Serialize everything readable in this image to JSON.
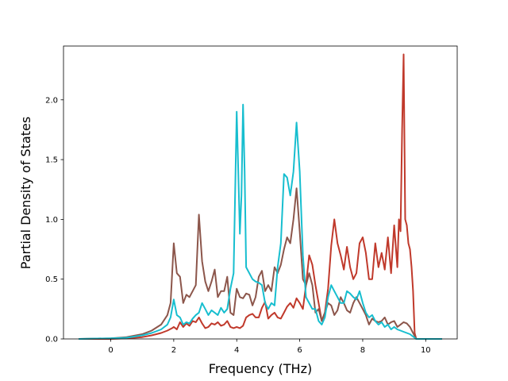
{
  "chart_data": {
    "type": "line",
    "title": "",
    "xlabel": "Frequency (THz)",
    "ylabel": "Partial Density of States",
    "xlim": [
      -1.5,
      11.0
    ],
    "ylim": [
      0.0,
      2.45
    ],
    "xticks": [
      0,
      2,
      4,
      6,
      8,
      10
    ],
    "xtick_labels": [
      "0",
      "2",
      "4",
      "6",
      "8",
      "10"
    ],
    "yticks": [
      0.0,
      0.5,
      1.0,
      1.5,
      2.0
    ],
    "ytick_labels": [
      "0.0",
      "0.5",
      "1.0",
      "1.5",
      "2.0"
    ],
    "grid": false,
    "legend": "none",
    "series": [
      {
        "color": "#c0392b",
        "points": [
          [
            -1.0,
            0.0
          ],
          [
            0.0,
            0.0
          ],
          [
            0.5,
            0.005
          ],
          [
            1.0,
            0.015
          ],
          [
            1.3,
            0.03
          ],
          [
            1.6,
            0.05
          ],
          [
            1.8,
            0.07
          ],
          [
            1.95,
            0.09
          ],
          [
            2.0,
            0.1
          ],
          [
            2.05,
            0.09
          ],
          [
            2.1,
            0.08
          ],
          [
            2.2,
            0.14
          ],
          [
            2.3,
            0.1
          ],
          [
            2.4,
            0.13
          ],
          [
            2.5,
            0.11
          ],
          [
            2.6,
            0.15
          ],
          [
            2.7,
            0.14
          ],
          [
            2.8,
            0.18
          ],
          [
            2.9,
            0.13
          ],
          [
            3.0,
            0.09
          ],
          [
            3.1,
            0.1
          ],
          [
            3.2,
            0.13
          ],
          [
            3.3,
            0.12
          ],
          [
            3.4,
            0.14
          ],
          [
            3.5,
            0.11
          ],
          [
            3.6,
            0.12
          ],
          [
            3.7,
            0.15
          ],
          [
            3.8,
            0.1
          ],
          [
            3.9,
            0.09
          ],
          [
            4.0,
            0.1
          ],
          [
            4.1,
            0.09
          ],
          [
            4.2,
            0.11
          ],
          [
            4.3,
            0.18
          ],
          [
            4.4,
            0.2
          ],
          [
            4.5,
            0.21
          ],
          [
            4.6,
            0.18
          ],
          [
            4.7,
            0.18
          ],
          [
            4.8,
            0.26
          ],
          [
            4.9,
            0.31
          ],
          [
            5.0,
            0.17
          ],
          [
            5.1,
            0.2
          ],
          [
            5.2,
            0.22
          ],
          [
            5.3,
            0.18
          ],
          [
            5.4,
            0.17
          ],
          [
            5.5,
            0.22
          ],
          [
            5.6,
            0.27
          ],
          [
            5.7,
            0.3
          ],
          [
            5.8,
            0.26
          ],
          [
            5.9,
            0.34
          ],
          [
            6.0,
            0.3
          ],
          [
            6.1,
            0.25
          ],
          [
            6.2,
            0.45
          ],
          [
            6.3,
            0.7
          ],
          [
            6.4,
            0.62
          ],
          [
            6.5,
            0.45
          ],
          [
            6.6,
            0.3
          ],
          [
            6.7,
            0.15
          ],
          [
            6.8,
            0.22
          ],
          [
            6.9,
            0.42
          ],
          [
            7.0,
            0.78
          ],
          [
            7.1,
            1.0
          ],
          [
            7.2,
            0.8
          ],
          [
            7.3,
            0.7
          ],
          [
            7.4,
            0.58
          ],
          [
            7.5,
            0.77
          ],
          [
            7.6,
            0.6
          ],
          [
            7.7,
            0.5
          ],
          [
            7.8,
            0.55
          ],
          [
            7.9,
            0.8
          ],
          [
            8.0,
            0.85
          ],
          [
            8.1,
            0.72
          ],
          [
            8.2,
            0.5
          ],
          [
            8.3,
            0.5
          ],
          [
            8.4,
            0.8
          ],
          [
            8.5,
            0.6
          ],
          [
            8.6,
            0.72
          ],
          [
            8.7,
            0.58
          ],
          [
            8.8,
            0.85
          ],
          [
            8.9,
            0.55
          ],
          [
            9.0,
            0.95
          ],
          [
            9.1,
            0.6
          ],
          [
            9.15,
            1.0
          ],
          [
            9.2,
            0.9
          ],
          [
            9.25,
            1.75
          ],
          [
            9.3,
            2.38
          ],
          [
            9.35,
            1.0
          ],
          [
            9.4,
            0.95
          ],
          [
            9.45,
            0.8
          ],
          [
            9.5,
            0.75
          ],
          [
            9.55,
            0.6
          ],
          [
            9.6,
            0.4
          ],
          [
            9.65,
            0.05
          ],
          [
            9.7,
            0.0
          ],
          [
            10.5,
            0.0
          ]
        ]
      },
      {
        "color": "#8c564b",
        "points": [
          [
            -1.0,
            0.0
          ],
          [
            0.0,
            0.005
          ],
          [
            0.5,
            0.015
          ],
          [
            1.0,
            0.04
          ],
          [
            1.3,
            0.07
          ],
          [
            1.6,
            0.12
          ],
          [
            1.8,
            0.2
          ],
          [
            1.9,
            0.3
          ],
          [
            2.0,
            0.8
          ],
          [
            2.1,
            0.55
          ],
          [
            2.2,
            0.52
          ],
          [
            2.3,
            0.3
          ],
          [
            2.4,
            0.37
          ],
          [
            2.5,
            0.35
          ],
          [
            2.6,
            0.4
          ],
          [
            2.7,
            0.45
          ],
          [
            2.8,
            1.04
          ],
          [
            2.9,
            0.65
          ],
          [
            3.0,
            0.48
          ],
          [
            3.1,
            0.4
          ],
          [
            3.2,
            0.48
          ],
          [
            3.3,
            0.58
          ],
          [
            3.4,
            0.35
          ],
          [
            3.5,
            0.4
          ],
          [
            3.6,
            0.4
          ],
          [
            3.7,
            0.52
          ],
          [
            3.8,
            0.22
          ],
          [
            3.9,
            0.2
          ],
          [
            4.0,
            0.42
          ],
          [
            4.1,
            0.35
          ],
          [
            4.2,
            0.34
          ],
          [
            4.3,
            0.38
          ],
          [
            4.4,
            0.37
          ],
          [
            4.5,
            0.28
          ],
          [
            4.6,
            0.35
          ],
          [
            4.7,
            0.52
          ],
          [
            4.8,
            0.57
          ],
          [
            4.9,
            0.4
          ],
          [
            5.0,
            0.45
          ],
          [
            5.1,
            0.4
          ],
          [
            5.2,
            0.6
          ],
          [
            5.3,
            0.55
          ],
          [
            5.4,
            0.62
          ],
          [
            5.5,
            0.75
          ],
          [
            5.6,
            0.85
          ],
          [
            5.7,
            0.8
          ],
          [
            5.8,
            1.0
          ],
          [
            5.9,
            1.26
          ],
          [
            6.0,
            0.9
          ],
          [
            6.1,
            0.5
          ],
          [
            6.2,
            0.45
          ],
          [
            6.3,
            0.55
          ],
          [
            6.4,
            0.45
          ],
          [
            6.5,
            0.22
          ],
          [
            6.6,
            0.25
          ],
          [
            6.7,
            0.15
          ],
          [
            6.8,
            0.22
          ],
          [
            6.9,
            0.3
          ],
          [
            7.0,
            0.28
          ],
          [
            7.1,
            0.2
          ],
          [
            7.2,
            0.24
          ],
          [
            7.3,
            0.35
          ],
          [
            7.4,
            0.3
          ],
          [
            7.5,
            0.24
          ],
          [
            7.6,
            0.22
          ],
          [
            7.7,
            0.3
          ],
          [
            7.8,
            0.35
          ],
          [
            7.9,
            0.3
          ],
          [
            8.0,
            0.25
          ],
          [
            8.1,
            0.2
          ],
          [
            8.2,
            0.12
          ],
          [
            8.3,
            0.17
          ],
          [
            8.4,
            0.15
          ],
          [
            8.5,
            0.14
          ],
          [
            8.6,
            0.15
          ],
          [
            8.7,
            0.18
          ],
          [
            8.8,
            0.12
          ],
          [
            8.9,
            0.14
          ],
          [
            9.0,
            0.15
          ],
          [
            9.1,
            0.1
          ],
          [
            9.2,
            0.12
          ],
          [
            9.3,
            0.14
          ],
          [
            9.4,
            0.13
          ],
          [
            9.5,
            0.1
          ],
          [
            9.6,
            0.05
          ],
          [
            9.7,
            0.0
          ],
          [
            10.5,
            0.0
          ]
        ]
      },
      {
        "color": "#17becf",
        "points": [
          [
            -1.0,
            0.0
          ],
          [
            0.0,
            0.005
          ],
          [
            0.5,
            0.01
          ],
          [
            1.0,
            0.03
          ],
          [
            1.3,
            0.05
          ],
          [
            1.6,
            0.08
          ],
          [
            1.8,
            0.12
          ],
          [
            1.9,
            0.18
          ],
          [
            2.0,
            0.33
          ],
          [
            2.1,
            0.2
          ],
          [
            2.2,
            0.18
          ],
          [
            2.3,
            0.12
          ],
          [
            2.4,
            0.14
          ],
          [
            2.5,
            0.13
          ],
          [
            2.6,
            0.17
          ],
          [
            2.7,
            0.2
          ],
          [
            2.8,
            0.22
          ],
          [
            2.9,
            0.3
          ],
          [
            3.0,
            0.25
          ],
          [
            3.1,
            0.2
          ],
          [
            3.2,
            0.24
          ],
          [
            3.3,
            0.22
          ],
          [
            3.4,
            0.2
          ],
          [
            3.5,
            0.26
          ],
          [
            3.6,
            0.22
          ],
          [
            3.7,
            0.25
          ],
          [
            3.8,
            0.42
          ],
          [
            3.9,
            0.55
          ],
          [
            4.0,
            1.9
          ],
          [
            4.05,
            1.4
          ],
          [
            4.1,
            0.88
          ],
          [
            4.15,
            1.2
          ],
          [
            4.2,
            1.96
          ],
          [
            4.25,
            1.4
          ],
          [
            4.3,
            0.6
          ],
          [
            4.4,
            0.55
          ],
          [
            4.5,
            0.5
          ],
          [
            4.6,
            0.48
          ],
          [
            4.7,
            0.47
          ],
          [
            4.8,
            0.45
          ],
          [
            4.9,
            0.3
          ],
          [
            5.0,
            0.25
          ],
          [
            5.1,
            0.3
          ],
          [
            5.2,
            0.28
          ],
          [
            5.3,
            0.6
          ],
          [
            5.4,
            0.8
          ],
          [
            5.5,
            1.38
          ],
          [
            5.6,
            1.35
          ],
          [
            5.7,
            1.2
          ],
          [
            5.8,
            1.4
          ],
          [
            5.9,
            1.81
          ],
          [
            6.0,
            1.4
          ],
          [
            6.1,
            0.7
          ],
          [
            6.2,
            0.35
          ],
          [
            6.3,
            0.3
          ],
          [
            6.4,
            0.25
          ],
          [
            6.5,
            0.25
          ],
          [
            6.6,
            0.15
          ],
          [
            6.7,
            0.12
          ],
          [
            6.8,
            0.18
          ],
          [
            6.9,
            0.35
          ],
          [
            7.0,
            0.45
          ],
          [
            7.1,
            0.4
          ],
          [
            7.2,
            0.35
          ],
          [
            7.3,
            0.3
          ],
          [
            7.4,
            0.3
          ],
          [
            7.5,
            0.4
          ],
          [
            7.6,
            0.38
          ],
          [
            7.7,
            0.35
          ],
          [
            7.8,
            0.33
          ],
          [
            7.9,
            0.4
          ],
          [
            8.0,
            0.3
          ],
          [
            8.1,
            0.22
          ],
          [
            8.2,
            0.18
          ],
          [
            8.3,
            0.2
          ],
          [
            8.4,
            0.15
          ],
          [
            8.5,
            0.12
          ],
          [
            8.6,
            0.14
          ],
          [
            8.7,
            0.1
          ],
          [
            8.8,
            0.12
          ],
          [
            8.9,
            0.08
          ],
          [
            9.0,
            0.1
          ],
          [
            9.1,
            0.08
          ],
          [
            9.2,
            0.07
          ],
          [
            9.3,
            0.06
          ],
          [
            9.4,
            0.05
          ],
          [
            9.5,
            0.04
          ],
          [
            9.6,
            0.02
          ],
          [
            9.7,
            0.0
          ],
          [
            10.5,
            0.0
          ]
        ]
      }
    ]
  }
}
